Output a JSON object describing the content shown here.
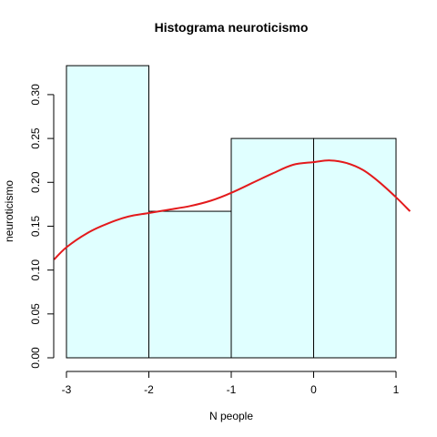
{
  "chart_data": {
    "type": "histogram",
    "title": "Histograma  neuroticismo",
    "xlabel": "N people",
    "ylabel": "neuroticismo",
    "xlim": [
      -3,
      1
    ],
    "ylim": [
      0,
      0.33
    ],
    "x_ticks": [
      "-3",
      "-2",
      "-1",
      "0",
      "1"
    ],
    "y_ticks": [
      "0.00",
      "0.05",
      "0.10",
      "0.15",
      "0.20",
      "0.25",
      "0.30"
    ],
    "bins": [
      {
        "from": -3,
        "to": -2,
        "density": 0.333
      },
      {
        "from": -2,
        "to": -1,
        "density": 0.167
      },
      {
        "from": -1,
        "to": 0,
        "density": 0.25
      },
      {
        "from": 0,
        "to": 1,
        "density": 0.25
      }
    ],
    "density_curve": {
      "x": [
        -3.15,
        -3.0,
        -2.75,
        -2.5,
        -2.25,
        -2.0,
        -1.75,
        -1.5,
        -1.25,
        -1.0,
        -0.75,
        -0.5,
        -0.25,
        0.0,
        0.2,
        0.4,
        0.6,
        0.8,
        1.0,
        1.17
      ],
      "y": [
        0.112,
        0.126,
        0.142,
        0.153,
        0.161,
        0.165,
        0.169,
        0.173,
        0.179,
        0.188,
        0.199,
        0.21,
        0.22,
        0.223,
        0.225,
        0.222,
        0.214,
        0.2,
        0.183,
        0.167
      ]
    },
    "colors": {
      "bar_fill": "#E0FFFF",
      "bar_stroke": "#000000",
      "curve": "#E31A1C"
    }
  }
}
